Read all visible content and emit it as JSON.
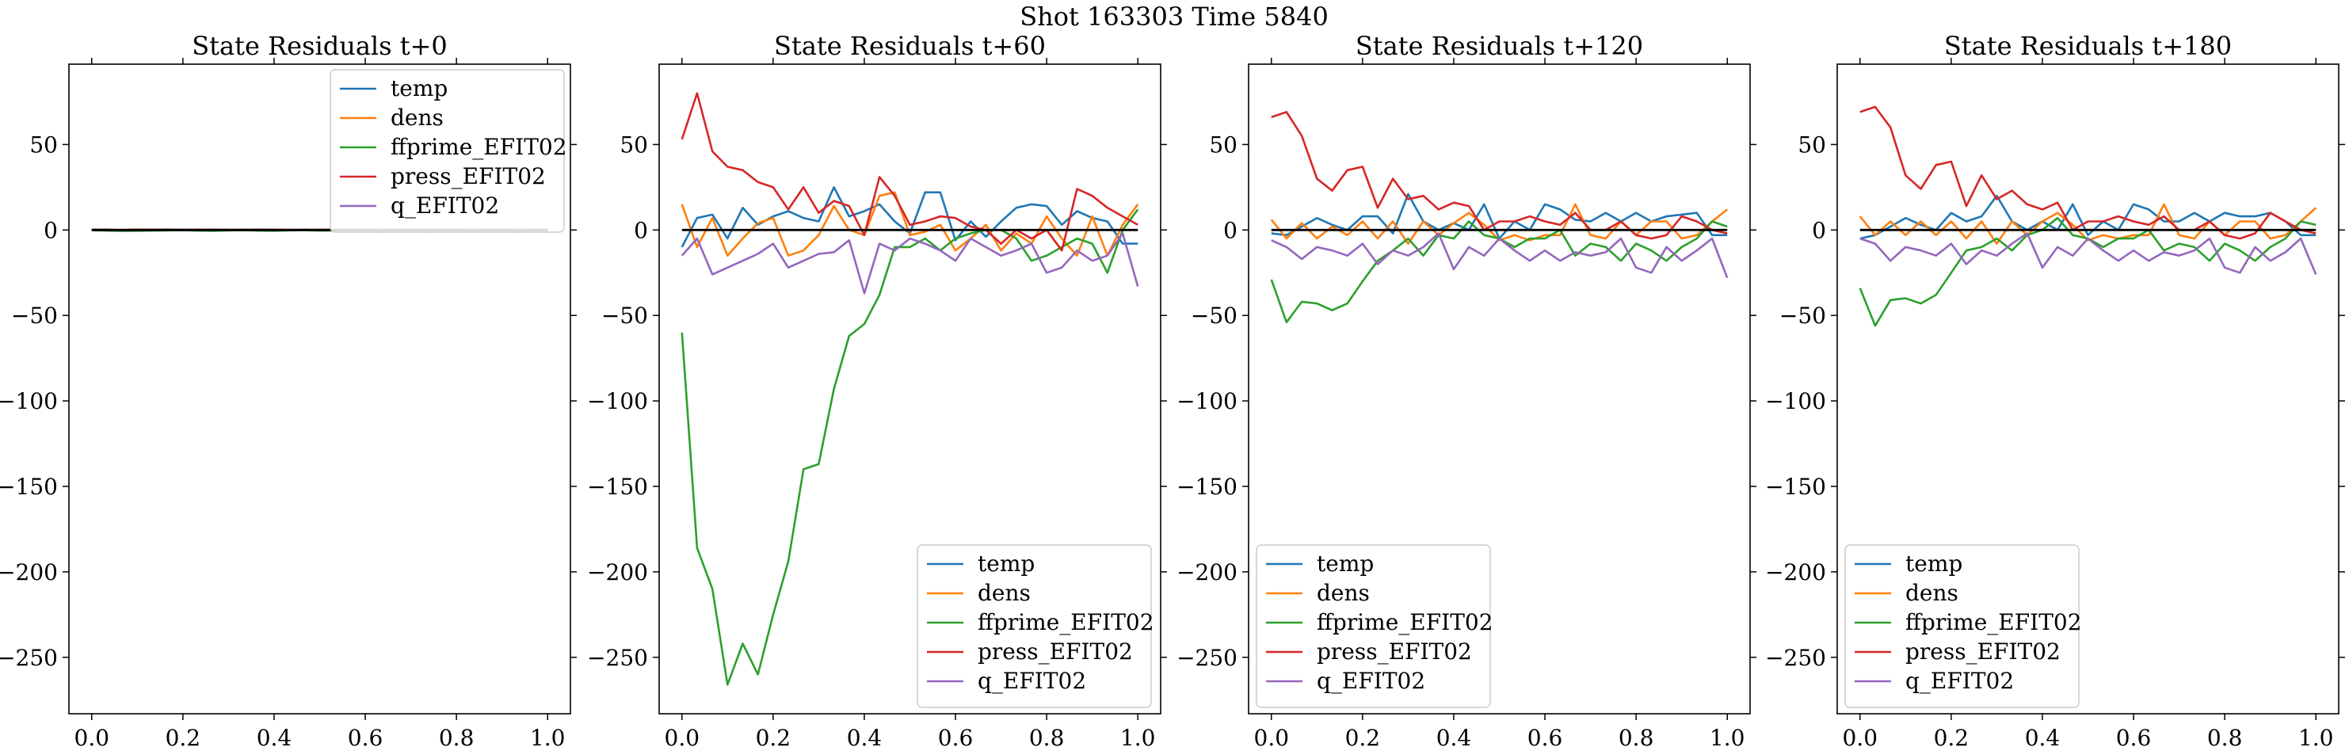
{
  "figure": {
    "suptitle": "Shot 163303   Time 5840"
  },
  "colors": {
    "temp": "#1f77b4",
    "dens": "#ff7f0e",
    "ffprime_EFIT02": "#2ca02c",
    "press_EFIT02": "#d62728",
    "q_EFIT02": "#9467bd",
    "zero_line": "#000000"
  },
  "chart_data": [
    {
      "type": "line",
      "title": "State Residuals t+0",
      "xlim": [
        -0.05,
        1.05
      ],
      "ylim": [
        -283,
        97
      ],
      "xticks": [
        0.0,
        0.2,
        0.4,
        0.6,
        0.8,
        1.0
      ],
      "xtick_labels": [
        "0.0",
        "0.2",
        "0.4",
        "0.6",
        "0.8",
        "1.0"
      ],
      "yticks": [
        50,
        0,
        -50,
        -100,
        -150,
        -200,
        -250
      ],
      "ytick_labels": [
        "50",
        "0",
        "−50",
        "−100",
        "−150",
        "−200",
        "−250"
      ],
      "legend_loc": "upper right",
      "x": [
        0.0,
        0.0333,
        0.0667,
        0.1,
        0.1333,
        0.1667,
        0.2,
        0.2333,
        0.2667,
        0.3,
        0.3333,
        0.3667,
        0.4,
        0.4333,
        0.4667,
        0.5,
        0.5333,
        0.5667,
        0.6,
        0.6333,
        0.6667,
        0.7,
        0.7333,
        0.7667,
        0.8,
        0.8333,
        0.8667,
        0.9,
        0.9333,
        0.9667,
        1.0
      ],
      "series": [
        {
          "name": "temp",
          "values": [
            0.1,
            0.2,
            -0.1,
            0.2,
            0.1,
            0.3,
            0.2,
            0.0,
            0.2,
            0.1,
            -0.1,
            0.2,
            0.1,
            0.0,
            0.1,
            -0.1,
            0.1,
            0.2,
            0.0,
            0.1,
            0.2,
            0.1,
            0.0,
            0.2,
            0.1,
            0.0,
            0.1,
            0.2,
            0.0,
            0.1,
            0.1
          ]
        },
        {
          "name": "dens",
          "values": [
            0.2,
            -0.1,
            0.1,
            0.3,
            0.0,
            0.2,
            0.1,
            0.2,
            0.0,
            0.1,
            0.2,
            -0.1,
            0.1,
            0.2,
            0.0,
            0.1,
            0.2,
            0.0,
            0.1,
            0.2,
            0.0,
            0.1,
            0.2,
            0.1,
            0.0,
            0.1,
            0.2,
            0.0,
            0.1,
            0.0,
            0.1
          ]
        },
        {
          "name": "ffprime_EFIT02",
          "values": [
            -0.2,
            -0.4,
            -0.6,
            -0.5,
            -0.4,
            -0.3,
            -0.2,
            -0.4,
            -0.5,
            -0.3,
            -0.2,
            -0.4,
            -0.5,
            -0.3,
            -0.2,
            -0.4,
            -0.3,
            -0.2,
            -0.3,
            -0.4,
            -0.2,
            -0.3,
            -0.4,
            -0.2,
            -0.3,
            -0.4,
            -0.3,
            -0.2,
            -0.4,
            -0.3,
            -0.2
          ]
        },
        {
          "name": "press_EFIT02",
          "values": [
            0.1,
            0.1,
            0.0,
            0.1,
            0.2,
            0.1,
            0.0,
            0.1,
            0.1,
            0.0,
            0.1,
            0.2,
            0.1,
            0.0,
            0.1,
            0.1,
            0.0,
            0.1,
            0.1,
            0.0,
            0.1,
            0.1,
            0.0,
            0.1,
            0.1,
            0.0,
            0.1,
            0.1,
            0.0,
            0.1,
            0.0
          ]
        },
        {
          "name": "q_EFIT02",
          "values": [
            0.0,
            -0.1,
            -0.2,
            -0.1,
            0.0,
            -0.1,
            -0.2,
            -0.1,
            0.0,
            -0.1,
            -0.1,
            0.0,
            -0.1,
            -0.2,
            -0.1,
            0.0,
            -0.1,
            -0.1,
            0.0,
            -0.1,
            -0.2,
            -0.1,
            0.0,
            -0.1,
            -0.1,
            0.0,
            -0.1,
            -0.1,
            0.0,
            -0.1,
            0.0
          ]
        }
      ]
    },
    {
      "type": "line",
      "title": "State Residuals t+60",
      "xlim": [
        -0.05,
        1.05
      ],
      "ylim": [
        -283,
        97
      ],
      "xticks": [
        0.0,
        0.2,
        0.4,
        0.6,
        0.8,
        1.0
      ],
      "xtick_labels": [
        "0.0",
        "0.2",
        "0.4",
        "0.6",
        "0.8",
        "1.0"
      ],
      "yticks": [
        50,
        0,
        -50,
        -100,
        -150,
        -200,
        -250
      ],
      "ytick_labels": [
        "50",
        "0",
        "−50",
        "−100",
        "−150",
        "−200",
        "−250"
      ],
      "legend_loc": "lower right",
      "x": [
        0.0,
        0.0333,
        0.0667,
        0.1,
        0.1333,
        0.1667,
        0.2,
        0.2333,
        0.2667,
        0.3,
        0.3333,
        0.3667,
        0.4,
        0.4333,
        0.4667,
        0.5,
        0.5333,
        0.5667,
        0.6,
        0.6333,
        0.6667,
        0.7,
        0.7333,
        0.7667,
        0.8,
        0.8333,
        0.8667,
        0.9,
        0.9333,
        0.9667,
        1.0
      ],
      "series": [
        {
          "name": "temp",
          "values": [
            -10,
            7,
            9,
            -5,
            13,
            3,
            8,
            11,
            7,
            5,
            25,
            8,
            11,
            15,
            5,
            -2,
            22,
            22,
            -6,
            5,
            -4,
            5,
            13,
            15,
            14,
            3,
            11,
            7,
            5,
            -8,
            -8
          ]
        },
        {
          "name": "dens",
          "values": [
            15,
            -10,
            7,
            -15,
            -5,
            4,
            7,
            -15,
            -12,
            -3,
            14,
            0,
            -3,
            20,
            22,
            -3,
            -1,
            3,
            -12,
            -5,
            3,
            -12,
            -2,
            -8,
            8,
            -5,
            -15,
            8,
            -15,
            3,
            15
          ]
        },
        {
          "name": "ffprime_EFIT02",
          "values": [
            -60,
            -186,
            -210,
            -266,
            -242,
            -260,
            -225,
            -194,
            -140,
            -137,
            -93,
            -62,
            -55,
            -38,
            -10,
            -10,
            -5,
            -12,
            -5,
            -2,
            0,
            0,
            -5,
            -18,
            -15,
            -10,
            -5,
            -8,
            -25,
            0,
            12
          ]
        },
        {
          "name": "press_EFIT02",
          "values": [
            53,
            80,
            46,
            37,
            35,
            28,
            25,
            12,
            25,
            10,
            17,
            14,
            -3,
            31,
            20,
            3,
            5,
            8,
            7,
            2,
            0,
            -8,
            0,
            -5,
            0,
            -12,
            24,
            20,
            13,
            8,
            3
          ]
        },
        {
          "name": "q_EFIT02",
          "values": [
            -15,
            -5,
            -26,
            -22,
            -18,
            -14,
            -8,
            -22,
            -18,
            -14,
            -13,
            -6,
            -37,
            -8,
            -12,
            -5,
            -8,
            -12,
            -18,
            -5,
            -10,
            -15,
            -12,
            -8,
            -25,
            -22,
            -12,
            -18,
            -15,
            -2,
            -33
          ]
        }
      ]
    },
    {
      "type": "line",
      "title": "State Residuals t+120",
      "xlim": [
        -0.05,
        1.05
      ],
      "ylim": [
        -283,
        97
      ],
      "xticks": [
        0.0,
        0.2,
        0.4,
        0.6,
        0.8,
        1.0
      ],
      "xtick_labels": [
        "0.0",
        "0.2",
        "0.4",
        "0.6",
        "0.8",
        "1.0"
      ],
      "yticks": [
        50,
        0,
        -50,
        -100,
        -150,
        -200,
        -250
      ],
      "ytick_labels": [
        "50",
        "0",
        "−50",
        "−100",
        "−150",
        "−200",
        "−250"
      ],
      "legend_loc": "lower left",
      "x": [
        0.0,
        0.0333,
        0.0667,
        0.1,
        0.1333,
        0.1667,
        0.2,
        0.2333,
        0.2667,
        0.3,
        0.3333,
        0.3667,
        0.4,
        0.4333,
        0.4667,
        0.5,
        0.5333,
        0.5667,
        0.6,
        0.6333,
        0.6667,
        0.7,
        0.7333,
        0.7667,
        0.8,
        0.8333,
        0.8667,
        0.9,
        0.9333,
        0.9667,
        1.0
      ],
      "series": [
        {
          "name": "temp",
          "values": [
            -2,
            -3,
            2,
            7,
            3,
            0,
            8,
            8,
            -2,
            21,
            5,
            0,
            4,
            0,
            15,
            -5,
            5,
            0,
            15,
            12,
            6,
            5,
            10,
            5,
            10,
            5,
            8,
            9,
            10,
            -3,
            -3
          ]
        },
        {
          "name": "dens",
          "values": [
            6,
            -5,
            4,
            -5,
            2,
            -3,
            5,
            -5,
            5,
            -8,
            5,
            -3,
            4,
            10,
            3,
            -6,
            -3,
            -6,
            -3,
            -3,
            15,
            -3,
            -5,
            5,
            -3,
            5,
            5,
            -5,
            -3,
            5,
            12
          ]
        },
        {
          "name": "ffprime_EFIT02",
          "values": [
            -29,
            -54,
            -42,
            -43,
            -47,
            -43,
            -30,
            -18,
            -12,
            -5,
            -15,
            -3,
            -5,
            5,
            -3,
            -5,
            -10,
            -5,
            -5,
            0,
            -15,
            -8,
            -10,
            -18,
            -8,
            -12,
            -18,
            -10,
            -5,
            5,
            2
          ]
        },
        {
          "name": "press_EFIT02",
          "values": [
            66,
            69,
            55,
            30,
            23,
            35,
            37,
            13,
            30,
            18,
            20,
            12,
            16,
            14,
            0,
            5,
            5,
            8,
            5,
            3,
            10,
            0,
            0,
            5,
            -3,
            -5,
            -3,
            8,
            5,
            0,
            -2
          ]
        },
        {
          "name": "q_EFIT02",
          "values": [
            -6,
            -10,
            -17,
            -10,
            -12,
            -15,
            -8,
            -20,
            -12,
            -15,
            -10,
            -2,
            -23,
            -10,
            -15,
            -5,
            -12,
            -18,
            -12,
            -18,
            -13,
            -15,
            -13,
            -5,
            -22,
            -25,
            -10,
            -18,
            -12,
            -5,
            -28
          ]
        }
      ]
    },
    {
      "type": "line",
      "title": "State Residuals t+180",
      "xlim": [
        -0.05,
        1.05
      ],
      "ylim": [
        -283,
        97
      ],
      "xticks": [
        0.0,
        0.2,
        0.4,
        0.6,
        0.8,
        1.0
      ],
      "xtick_labels": [
        "0.0",
        "0.2",
        "0.4",
        "0.6",
        "0.8",
        "1.0"
      ],
      "yticks": [
        50,
        0,
        -50,
        -100,
        -150,
        -200,
        -250
      ],
      "ytick_labels": [
        "50",
        "0",
        "−50",
        "−100",
        "−150",
        "−200",
        "−250"
      ],
      "legend_loc": "lower left",
      "x": [
        0.0,
        0.0333,
        0.0667,
        0.1,
        0.1333,
        0.1667,
        0.2,
        0.2333,
        0.2667,
        0.3,
        0.3333,
        0.3667,
        0.4,
        0.4333,
        0.4667,
        0.5,
        0.5333,
        0.5667,
        0.6,
        0.6333,
        0.6667,
        0.7,
        0.7333,
        0.7667,
        0.8,
        0.8333,
        0.8667,
        0.9,
        0.9333,
        0.9667,
        1.0
      ],
      "series": [
        {
          "name": "temp",
          "values": [
            -5,
            -3,
            2,
            7,
            3,
            0,
            10,
            5,
            8,
            20,
            5,
            0,
            5,
            0,
            15,
            -3,
            5,
            0,
            15,
            12,
            5,
            5,
            10,
            5,
            10,
            8,
            8,
            10,
            5,
            -3,
            -3
          ]
        },
        {
          "name": "dens",
          "values": [
            8,
            -3,
            5,
            -3,
            5,
            -3,
            5,
            -5,
            5,
            -8,
            5,
            -3,
            5,
            10,
            3,
            -6,
            -3,
            -5,
            -3,
            -3,
            15,
            -3,
            -5,
            5,
            -3,
            5,
            5,
            -5,
            -3,
            5,
            13
          ]
        },
        {
          "name": "ffprime_EFIT02",
          "values": [
            -34,
            -56,
            -41,
            -40,
            -43,
            -38,
            -25,
            -12,
            -10,
            -5,
            -12,
            -3,
            0,
            7,
            -3,
            -5,
            -10,
            -5,
            -5,
            0,
            -12,
            -8,
            -10,
            -18,
            -8,
            -12,
            -18,
            -10,
            -5,
            5,
            3
          ]
        },
        {
          "name": "press_EFIT02",
          "values": [
            69,
            72,
            60,
            32,
            24,
            38,
            40,
            14,
            32,
            18,
            23,
            15,
            12,
            16,
            0,
            5,
            5,
            8,
            5,
            3,
            8,
            0,
            0,
            5,
            -3,
            -5,
            -2,
            10,
            5,
            0,
            -2
          ]
        },
        {
          "name": "q_EFIT02",
          "values": [
            -5,
            -8,
            -18,
            -10,
            -12,
            -15,
            -8,
            -20,
            -12,
            -15,
            -8,
            -2,
            -22,
            -10,
            -15,
            -5,
            -12,
            -18,
            -12,
            -18,
            -13,
            -15,
            -12,
            -5,
            -22,
            -25,
            -10,
            -18,
            -13,
            -5,
            -26
          ]
        }
      ]
    }
  ]
}
